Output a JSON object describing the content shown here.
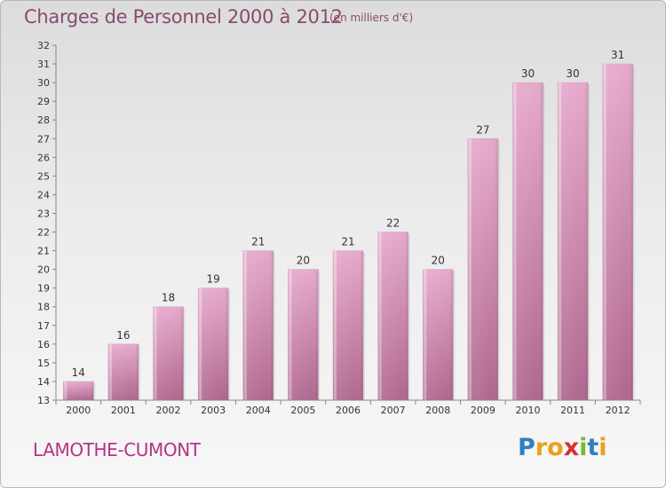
{
  "title": "Charges de Personnel 2000 à 2012",
  "subtitle": "(en milliers d'€)",
  "place": "LAMOTHE-CUMONT",
  "logo": {
    "letters": [
      "P",
      "r",
      "o",
      "x",
      "i",
      "t",
      "i"
    ],
    "colors": [
      "#2f7fc1",
      "#e8a21a",
      "#e8a21a",
      "#d4322f",
      "#7cb934",
      "#2f7fc1",
      "#e8a21a"
    ]
  },
  "colors": {
    "bar_top": "#e6a9cc",
    "bar_bottom": "#b0678f",
    "text": "#8a4a6e",
    "place": "#b53385"
  },
  "chart_data": {
    "type": "bar",
    "categories": [
      "2000",
      "2001",
      "2002",
      "2003",
      "2004",
      "2005",
      "2006",
      "2007",
      "2008",
      "2009",
      "2010",
      "2011",
      "2012"
    ],
    "values": [
      14,
      16,
      18,
      19,
      21,
      20,
      21,
      22,
      20,
      27,
      30,
      30,
      31
    ],
    "title": "Charges de Personnel 2000 à 2012",
    "xlabel": "",
    "ylabel": "",
    "ylim": [
      13,
      32
    ],
    "yticks": [
      13,
      14,
      15,
      16,
      17,
      18,
      19,
      20,
      21,
      22,
      23,
      24,
      25,
      26,
      27,
      28,
      29,
      30,
      31,
      32
    ],
    "grid": false,
    "legend": "none"
  }
}
